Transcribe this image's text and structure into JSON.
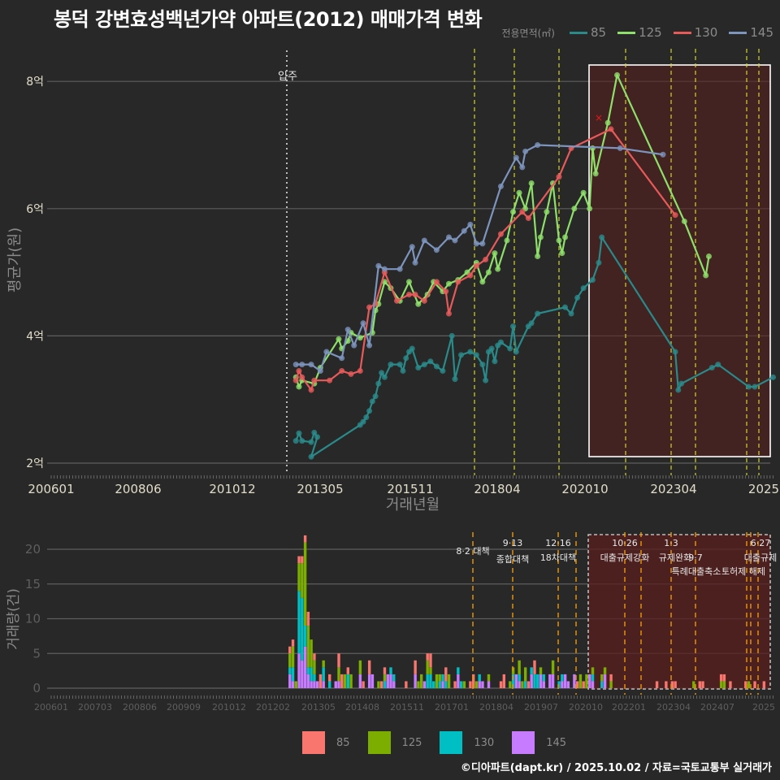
{
  "title": "봉덕 강변효성백년가약 아파트(2012) 매매가격 변화",
  "legend_top": {
    "title": "전용면적(㎡)",
    "items": [
      {
        "label": "85",
        "color": "#2a8a8a"
      },
      {
        "label": "125",
        "color": "#8ee06a"
      },
      {
        "label": "130",
        "color": "#e85a5a"
      },
      {
        "label": "145",
        "color": "#7d94bd"
      }
    ]
  },
  "legend_bottom": {
    "items": [
      {
        "label": "85",
        "color": "#f8766d"
      },
      {
        "label": "125",
        "color": "#7cae00"
      },
      {
        "label": "130",
        "color": "#00bfc4"
      },
      {
        "label": "145",
        "color": "#c77cff"
      }
    ]
  },
  "footer": "©디아파트(dapt.kr) / 2025.10.02 / 자료=국토교통부 실거래가",
  "chart_data": [
    {
      "type": "line",
      "title": "봉덕 강변효성백년가약 아파트(2012) 매매가격 변화",
      "xlabel": "거래년월",
      "ylabel": "평균가(원)",
      "x_tick_labels": [
        "200601",
        "200806",
        "201012",
        "201305",
        "201511",
        "201804",
        "202010",
        "202304",
        "2025"
      ],
      "y_tick_labels": [
        "2억",
        "4억",
        "6억",
        "8억"
      ],
      "ylim_eok": [
        1.8,
        8.6
      ],
      "grid": true,
      "annotations": [
        {
          "type": "vline-dotted",
          "x": "201209",
          "label": "입주"
        },
        {
          "type": "highlight-box",
          "x_from": "202010",
          "x_to": "202509",
          "note": "highlighted recent period"
        },
        {
          "type": "marker-x",
          "x": "202102",
          "y_eok": 7.4,
          "color": "#e41a1c"
        }
      ],
      "policy_lines": [
        "201708",
        "201809",
        "201912",
        "202010",
        "202110",
        "202301",
        "202309",
        "202412",
        "202506"
      ],
      "series": [
        {
          "name": "85",
          "color": "#2a8a8a",
          "points": [
            [
              "201209",
              2.35
            ],
            [
              "201210",
              2.47
            ],
            [
              "201211",
              2.35
            ],
            [
              "201302",
              2.33
            ],
            [
              "201303",
              2.48
            ],
            [
              "201304",
              2.41
            ],
            [
              "201302",
              2.1
            ],
            [
              "201406",
              2.6
            ],
            [
              "201407",
              2.65
            ],
            [
              "201408",
              2.72
            ],
            [
              "201409",
              2.82
            ],
            [
              "201410",
              2.97
            ],
            [
              "201411",
              3.05
            ],
            [
              "201412",
              3.25
            ],
            [
              "201501",
              3.42
            ],
            [
              "201502",
              3.35
            ],
            [
              "201504",
              3.55
            ],
            [
              "201507",
              3.55
            ],
            [
              "201508",
              3.45
            ],
            [
              "201509",
              3.65
            ],
            [
              "201510",
              3.75
            ],
            [
              "201511",
              3.8
            ],
            [
              "201601",
              3.5
            ],
            [
              "201603",
              3.55
            ],
            [
              "201605",
              3.6
            ],
            [
              "201607",
              3.52
            ],
            [
              "201609",
              3.45
            ],
            [
              "201612",
              4.0
            ],
            [
              "201701",
              3.32
            ],
            [
              "201703",
              3.7
            ],
            [
              "201706",
              3.75
            ],
            [
              "201708",
              3.7
            ],
            [
              "201710",
              3.55
            ],
            [
              "201711",
              3.3
            ],
            [
              "201712",
              3.75
            ],
            [
              "201801",
              3.8
            ],
            [
              "201802",
              3.6
            ],
            [
              "201803",
              3.85
            ],
            [
              "201804",
              3.9
            ],
            [
              "201807",
              3.8
            ],
            [
              "201808",
              4.15
            ],
            [
              "201809",
              3.75
            ],
            [
              "201901",
              4.15
            ],
            [
              "201902",
              4.2
            ],
            [
              "201904",
              4.35
            ],
            [
              "202001",
              4.45
            ],
            [
              "202003",
              4.35
            ],
            [
              "202005",
              4.6
            ],
            [
              "202007",
              4.75
            ],
            [
              "202010",
              4.88
            ],
            [
              "202012",
              5.15
            ],
            [
              "202101",
              5.55
            ],
            [
              "202301",
              3.75
            ],
            [
              "202302",
              3.15
            ],
            [
              "202303",
              3.25
            ],
            [
              "202401",
              3.5
            ],
            [
              "202403",
              3.55
            ],
            [
              "202501",
              3.2
            ],
            [
              "202503",
              3.2
            ],
            [
              "202509",
              3.35
            ]
          ]
        },
        {
          "name": "125",
          "color": "#8ee06a",
          "points": [
            [
              "201209",
              3.35
            ],
            [
              "201210",
              3.2
            ],
            [
              "201211",
              3.3
            ],
            [
              "201303",
              3.25
            ],
            [
              "201305",
              3.5
            ],
            [
              "201311",
              3.95
            ],
            [
              "201312",
              3.8
            ],
            [
              "201402",
              3.92
            ],
            [
              "201403",
              4.05
            ],
            [
              "201406",
              3.97
            ],
            [
              "201410",
              4.05
            ],
            [
              "201411",
              4.4
            ],
            [
              "201412",
              4.5
            ],
            [
              "201502",
              4.85
            ],
            [
              "201504",
              4.75
            ],
            [
              "201507",
              4.55
            ],
            [
              "201510",
              4.85
            ],
            [
              "201601",
              4.5
            ],
            [
              "201604",
              4.65
            ],
            [
              "201606",
              4.85
            ],
            [
              "201609",
              4.7
            ],
            [
              "201611",
              4.82
            ],
            [
              "201702",
              4.88
            ],
            [
              "201705",
              5.0
            ],
            [
              "201708",
              5.15
            ],
            [
              "201710",
              4.85
            ],
            [
              "201712",
              5.0
            ],
            [
              "201802",
              5.3
            ],
            [
              "201803",
              5.05
            ],
            [
              "201806",
              5.5
            ],
            [
              "201808",
              5.95
            ],
            [
              "201810",
              6.25
            ],
            [
              "201812",
              6.0
            ],
            [
              "201902",
              6.4
            ],
            [
              "201904",
              5.25
            ],
            [
              "201905",
              5.55
            ],
            [
              "201907",
              5.95
            ],
            [
              "201909",
              6.4
            ],
            [
              "201911",
              5.5
            ],
            [
              "201912",
              5.3
            ],
            [
              "202001",
              5.55
            ],
            [
              "202004",
              6.0
            ],
            [
              "202007",
              6.25
            ],
            [
              "202009",
              6.0
            ],
            [
              "202010",
              6.95
            ],
            [
              "202011",
              6.55
            ],
            [
              "202103",
              7.35
            ],
            [
              "202106",
              8.1
            ],
            [
              "202304",
              5.8
            ],
            [
              "202311",
              4.95
            ],
            [
              "202312",
              5.25
            ]
          ]
        },
        {
          "name": "130",
          "color": "#e85a5a",
          "points": [
            [
              "201209",
              3.3
            ],
            [
              "201210",
              3.45
            ],
            [
              "201211",
              3.35
            ],
            [
              "201302",
              3.15
            ],
            [
              "201303",
              3.3
            ],
            [
              "201308",
              3.3
            ],
            [
              "201312",
              3.45
            ],
            [
              "201403",
              3.4
            ],
            [
              "201406",
              3.45
            ],
            [
              "201409",
              4.45
            ],
            [
              "201411",
              4.5
            ],
            [
              "201502",
              5.0
            ],
            [
              "201506",
              4.55
            ],
            [
              "201510",
              4.65
            ],
            [
              "201512",
              4.65
            ],
            [
              "201603",
              4.55
            ],
            [
              "201607",
              4.85
            ],
            [
              "201610",
              4.7
            ],
            [
              "201611",
              4.35
            ],
            [
              "201702",
              4.85
            ],
            [
              "201706",
              4.95
            ],
            [
              "201708",
              5.1
            ],
            [
              "201711",
              5.2
            ],
            [
              "201804",
              5.6
            ],
            [
              "201811",
              5.95
            ],
            [
              "201901",
              5.85
            ],
            [
              "201911",
              6.5
            ],
            [
              "202003",
              6.95
            ],
            [
              "202104",
              7.25
            ],
            [
              "202301",
              5.9
            ]
          ]
        },
        {
          "name": "145",
          "color": "#7d94bd",
          "points": [
            [
              "201209",
              3.55
            ],
            [
              "201211",
              3.55
            ],
            [
              "201302",
              3.55
            ],
            [
              "201305",
              3.45
            ],
            [
              "201307",
              3.75
            ],
            [
              "201312",
              3.65
            ],
            [
              "201402",
              4.1
            ],
            [
              "201404",
              3.85
            ],
            [
              "201407",
              4.2
            ],
            [
              "201409",
              3.85
            ],
            [
              "201412",
              5.1
            ],
            [
              "201502",
              5.05
            ],
            [
              "201507",
              5.05
            ],
            [
              "201511",
              5.4
            ],
            [
              "201512",
              5.15
            ],
            [
              "201603",
              5.5
            ],
            [
              "201607",
              5.35
            ],
            [
              "201611",
              5.55
            ],
            [
              "201701",
              5.5
            ],
            [
              "201704",
              5.65
            ],
            [
              "201706",
              5.75
            ],
            [
              "201708",
              5.45
            ],
            [
              "201710",
              5.45
            ],
            [
              "201804",
              6.35
            ],
            [
              "201809",
              6.8
            ],
            [
              "201811",
              6.65
            ],
            [
              "201812",
              6.9
            ],
            [
              "201904",
              7.0
            ],
            [
              "202107",
              6.95
            ],
            [
              "202209",
              6.85
            ]
          ]
        }
      ]
    },
    {
      "type": "bar",
      "stacked": true,
      "title": "거래량",
      "xlabel": "",
      "ylabel": "거래량(건)",
      "x_tick_labels": [
        "200601",
        "200703",
        "200806",
        "200909",
        "201012",
        "201202",
        "201305",
        "201408",
        "201511",
        "201701",
        "201804",
        "201907",
        "202010",
        "202201",
        "202304",
        "202407",
        "2025"
      ],
      "y_tick_labels": [
        "0",
        "5",
        "10",
        "15",
        "20"
      ],
      "ylim": [
        0,
        22
      ],
      "grid": true,
      "policy_annotations": [
        {
          "date": "8.2",
          "label": "대책"
        },
        {
          "date": "9.13",
          "label": "종합대책"
        },
        {
          "date": "12.16",
          "label": "18차대책"
        },
        {
          "date": "10.26",
          "label": "대출규제강화"
        },
        {
          "date": "1.3",
          "label": "규제완화"
        },
        {
          "date": "9.7",
          "label": "특례대출축소"
        },
        {
          "date": "",
          "label": "토허제 해제"
        },
        {
          "date": "6.27",
          "label": "대출규제"
        }
      ],
      "highlight_box": {
        "x_from": "202010",
        "x_to": "202509"
      },
      "peak_months": [
        {
          "month": "201209",
          "total": 19
        },
        {
          "month": "201210",
          "total": 22
        },
        {
          "month": "201211",
          "total": 8
        }
      ],
      "series_names": [
        "85",
        "125",
        "130",
        "145"
      ]
    }
  ],
  "main_chart": {
    "y_labels": [
      "8억",
      "6억",
      "4억",
      "2억"
    ],
    "x_labels": [
      "200601",
      "200806",
      "201012",
      "201305",
      "201511",
      "201804",
      "202010",
      "202304",
      "2025"
    ],
    "xlabel": "거래년월",
    "ylabel": "평균가(원)",
    "move_in_label": "입주"
  },
  "volume_chart": {
    "y_labels": [
      "20",
      "15",
      "10",
      "5",
      "0"
    ],
    "x_labels": [
      "200601",
      "200703",
      "200806",
      "200909",
      "201012",
      "201202",
      "201305",
      "201408",
      "201511",
      "201701",
      "201804",
      "201907",
      "202010",
      "202201",
      "202304",
      "202407",
      "2025"
    ],
    "ylabel": "거래량(건)",
    "annot": {
      "a1_date": "8·2 대책",
      "a2_date": "9·13",
      "a2_label": "종합대책",
      "a3_date": "12·16",
      "a3_label": "18차대책",
      "a4_date": "10·26",
      "a4_label": "대출규제강화",
      "a5_date": "1·3",
      "a5_label": "규제완화",
      "a6_date": "9·7",
      "a6_label": "특례대출축소",
      "a7_label": "토허제 해제",
      "a8_date": "6·27",
      "a8_label": "대출규제"
    }
  }
}
